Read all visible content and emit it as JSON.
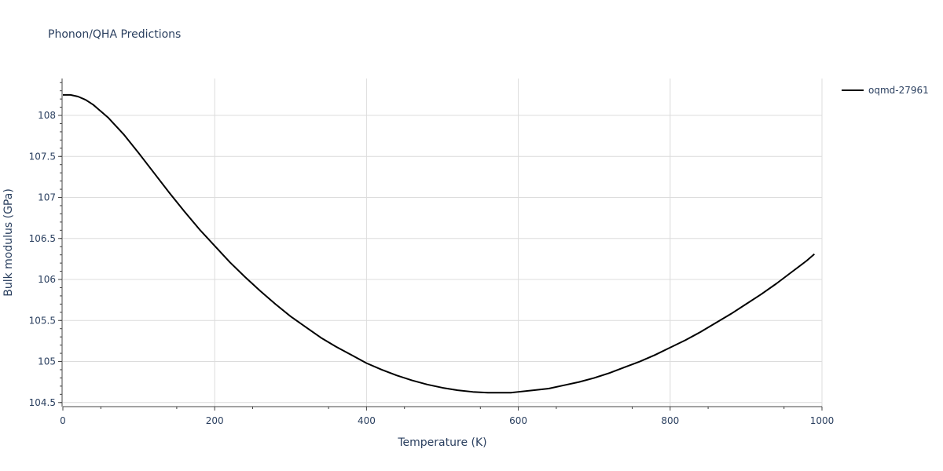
{
  "chart_data": {
    "type": "line",
    "title": "Phonon/QHA Predictions",
    "xlabel": "Temperature (K)",
    "ylabel": "Bulk modulus (GPa)",
    "xlim": [
      0,
      1000
    ],
    "ylim": [
      104.45,
      108.45
    ],
    "x_ticks": [
      0,
      200,
      400,
      600,
      800,
      1000
    ],
    "x_tick_labels": [
      "0",
      "200",
      "400",
      "600",
      "800",
      "1000"
    ],
    "y_ticks": [
      104.5,
      105,
      105.5,
      106,
      106.5,
      107,
      107.5,
      108
    ],
    "y_tick_labels": [
      "104.5",
      "105",
      "105.5",
      "106",
      "106.5",
      "107",
      "107.5",
      "108"
    ],
    "grid": true,
    "legend_position": "top-right",
    "series": [
      {
        "name": "oqmd-27961",
        "color": "#000000",
        "x": [
          0,
          10,
          20,
          30,
          40,
          50,
          60,
          80,
          100,
          120,
          140,
          160,
          180,
          200,
          220,
          240,
          260,
          280,
          300,
          320,
          340,
          360,
          380,
          400,
          420,
          440,
          460,
          480,
          500,
          520,
          540,
          560,
          580,
          590,
          600,
          620,
          640,
          660,
          680,
          700,
          720,
          740,
          760,
          780,
          800,
          820,
          840,
          860,
          880,
          900,
          920,
          940,
          960,
          980,
          990
        ],
        "y": [
          108.25,
          108.25,
          108.23,
          108.19,
          108.13,
          108.05,
          107.97,
          107.77,
          107.54,
          107.3,
          107.06,
          106.83,
          106.61,
          106.41,
          106.21,
          106.03,
          105.86,
          105.7,
          105.55,
          105.42,
          105.29,
          105.18,
          105.08,
          104.98,
          104.9,
          104.83,
          104.77,
          104.72,
          104.68,
          104.65,
          104.63,
          104.62,
          104.62,
          104.62,
          104.63,
          104.65,
          104.67,
          104.71,
          104.75,
          104.8,
          104.86,
          104.93,
          105.0,
          105.08,
          105.17,
          105.26,
          105.36,
          105.47,
          105.58,
          105.7,
          105.82,
          105.95,
          106.09,
          106.23,
          106.31
        ]
      }
    ]
  }
}
